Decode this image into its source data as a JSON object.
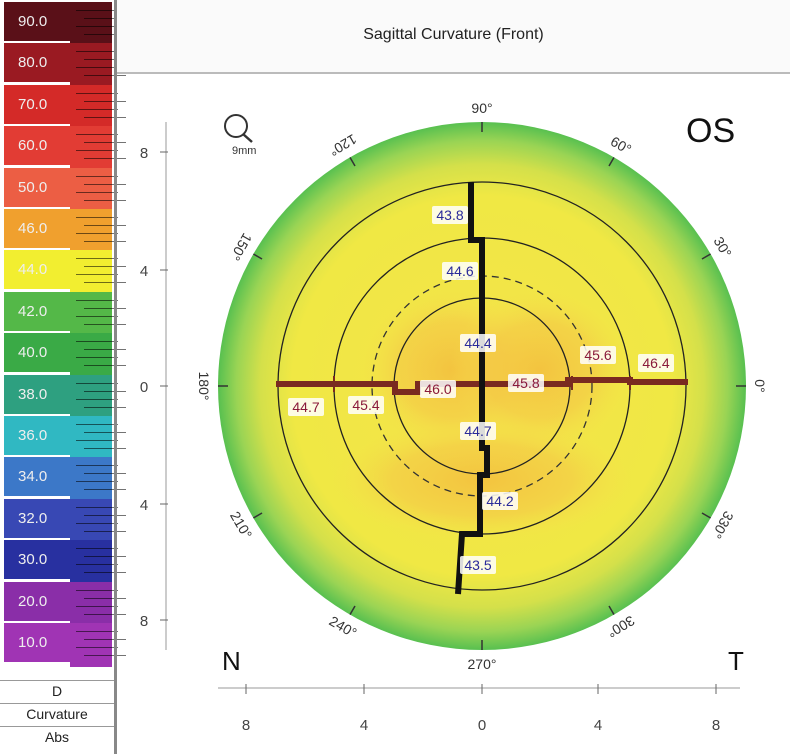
{
  "title": "Sagittal Curvature (Front)",
  "eye": "OS",
  "nasal_label": "N",
  "temporal_label": "T",
  "zoom_label": "9mm",
  "legend": {
    "entries": [
      {
        "label": "90.0",
        "color": "#5a1018"
      },
      {
        "label": "80.0",
        "color": "#9a1a22"
      },
      {
        "label": "70.0",
        "color": "#d42a28"
      },
      {
        "label": "60.0",
        "color": "#e23c34"
      },
      {
        "label": "50.0",
        "color": "#ec5e44"
      },
      {
        "label": "46.0",
        "color": "#f0a02e"
      },
      {
        "label": "44.0",
        "color": "#f2ee30"
      },
      {
        "label": "42.0",
        "color": "#54b848"
      },
      {
        "label": "40.0",
        "color": "#3aaa46"
      },
      {
        "label": "38.0",
        "color": "#2ea080"
      },
      {
        "label": "36.0",
        "color": "#30b8c2"
      },
      {
        "label": "34.0",
        "color": "#3c78c8"
      },
      {
        "label": "32.0",
        "color": "#3848b4"
      },
      {
        "label": "30.0",
        "color": "#2830a0"
      },
      {
        "label": "20.0",
        "color": "#8a2ea8"
      },
      {
        "label": "10.0",
        "color": "#a034b4"
      }
    ],
    "unit": "D",
    "type": "Curvature",
    "mode": "Abs"
  },
  "axes": {
    "y_ticks": [
      "8",
      "4",
      "0",
      "4",
      "8"
    ],
    "x_ticks": [
      "8",
      "4",
      "0",
      "4",
      "8"
    ]
  },
  "angles": [
    "90°",
    "60°",
    "30°",
    "0°",
    "330°",
    "300°",
    "270°",
    "240°",
    "210°",
    "180°",
    "150°",
    "120°"
  ],
  "readings_horizontal": [
    "44.7",
    "45.4",
    "46.0",
    "45.8",
    "45.6",
    "46.4"
  ],
  "readings_vertical": [
    "43.8",
    "44.6",
    "44.4",
    "44.7",
    "44.2",
    "43.5"
  ]
}
